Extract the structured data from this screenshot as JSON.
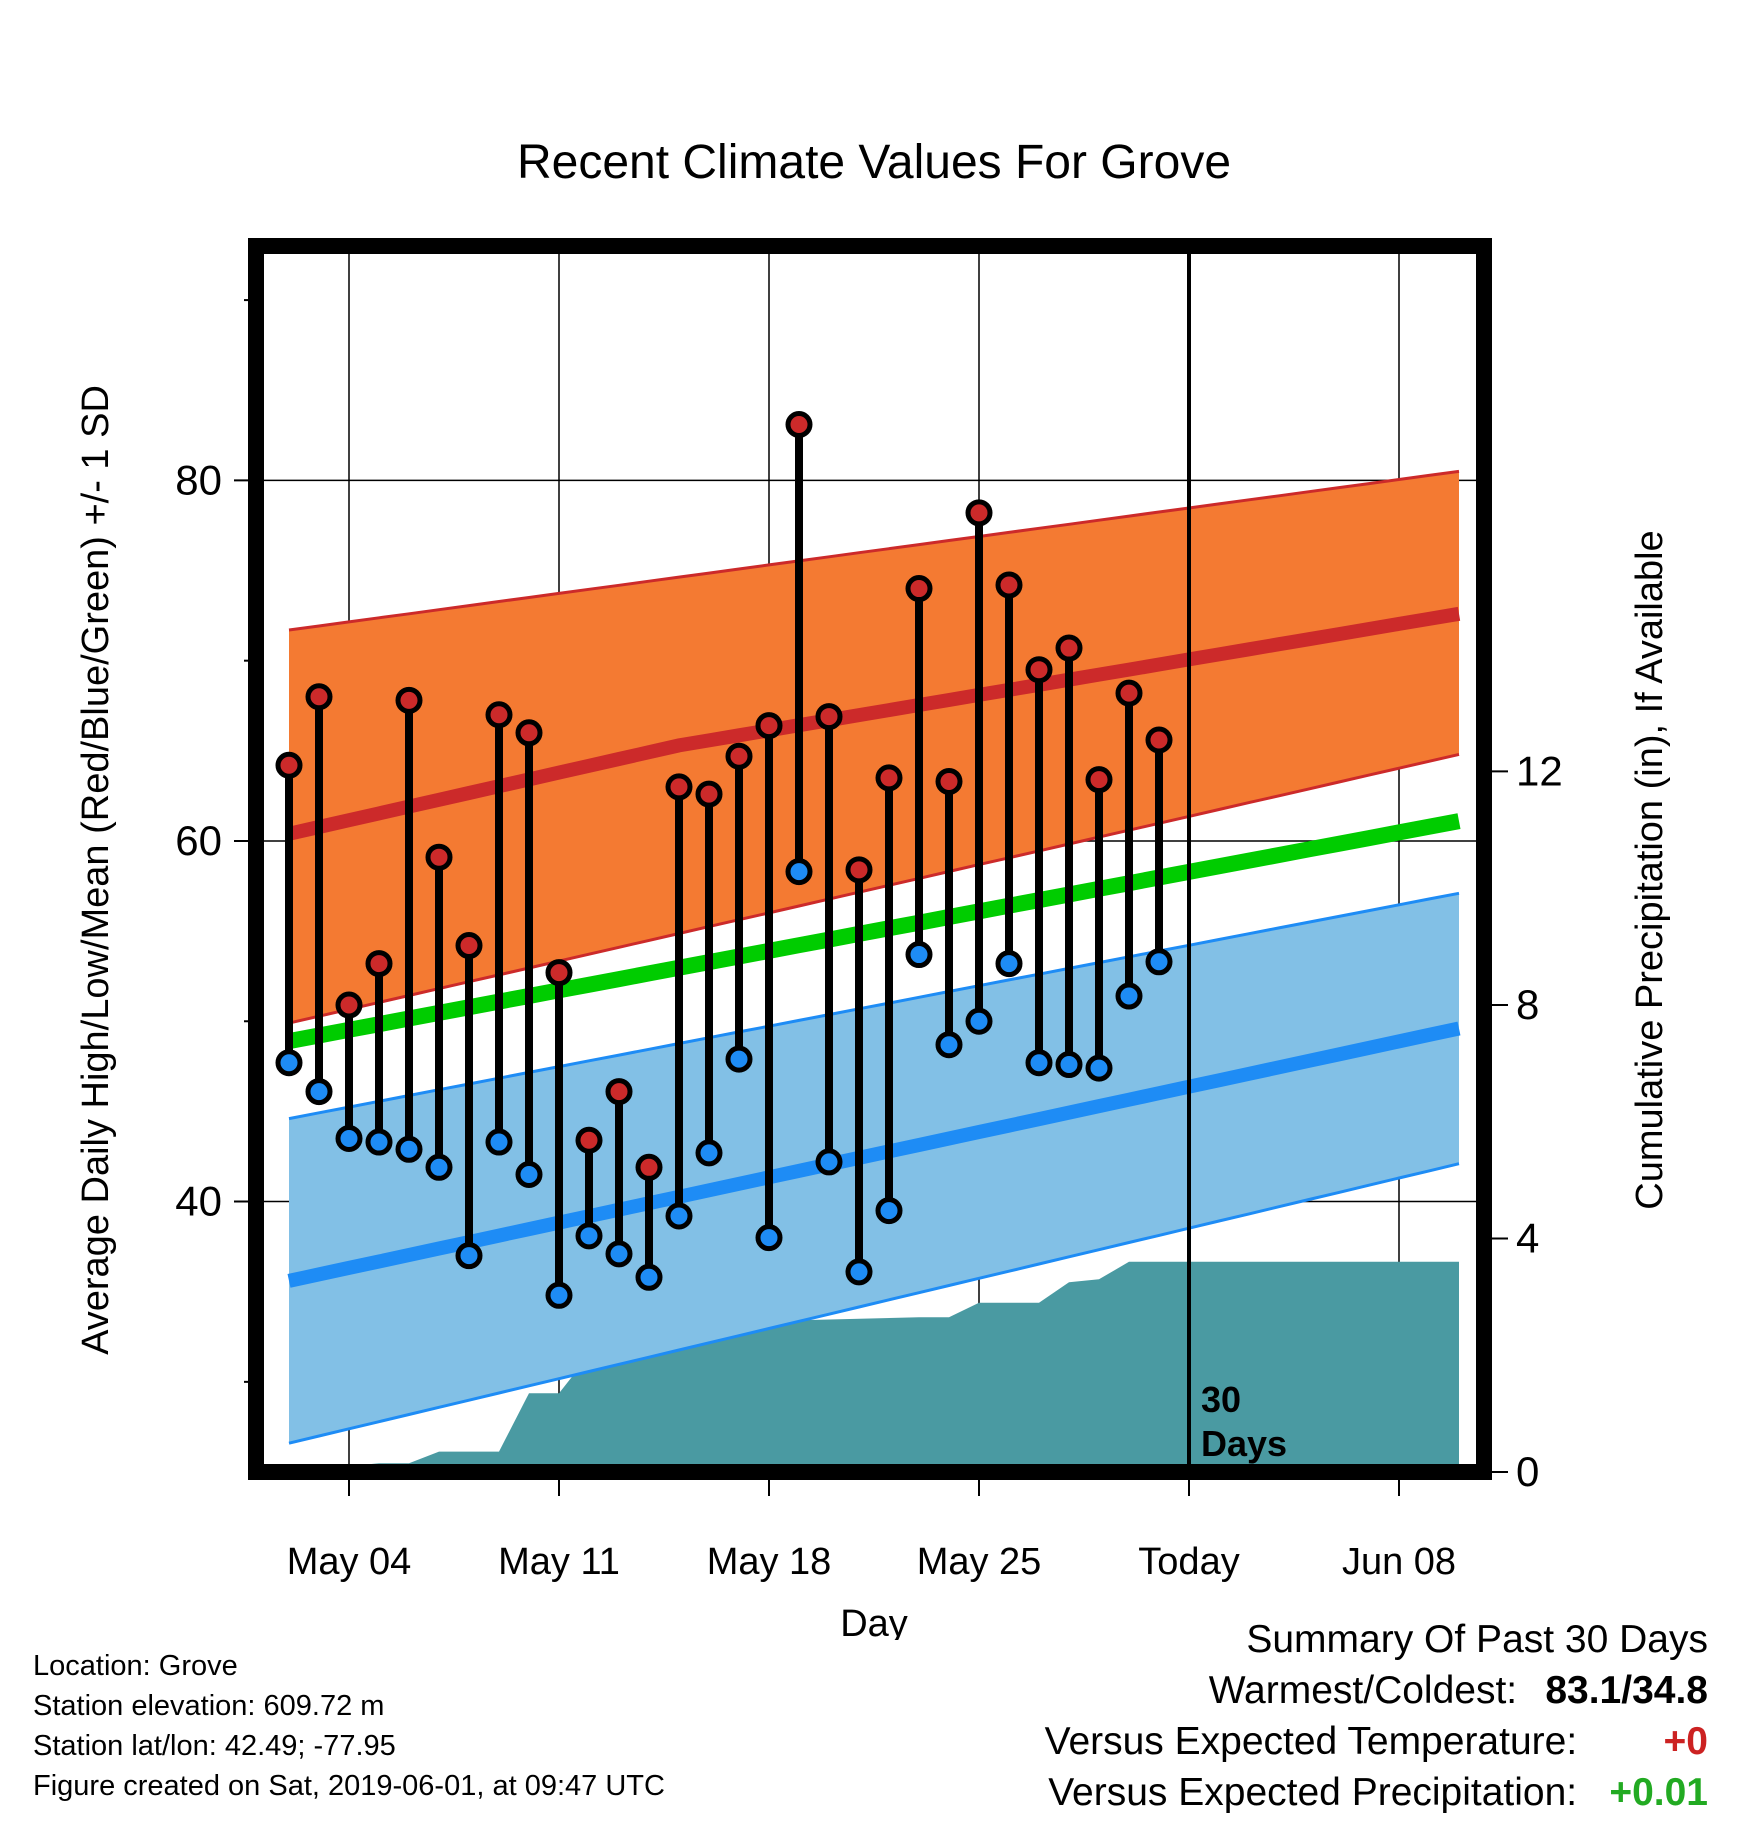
{
  "chart_data": {
    "type": "line",
    "title": "Recent Climate Values For Grove",
    "xlabel": "Day",
    "ylabel": "Average Daily High/Low/Mean (Red/Blue/Green) +/- 1 SD",
    "y2label": "Cumulative Precipitation (in), If Available",
    "x_ticks": [
      "May 04",
      "May 11",
      "May 18",
      "May 25",
      "Today",
      "Jun 08"
    ],
    "ylim": [
      25,
      93
    ],
    "y_ticks": [
      40,
      60,
      80
    ],
    "y2lim": [
      0,
      21
    ],
    "y2_ticks": [
      0,
      4,
      8,
      12
    ],
    "today_marker_label": "30\nDays",
    "colors": {
      "high_band": "#f47a32",
      "high_mean": "#cc2a2a",
      "low_band": "#82c0e6",
      "low_mean": "#1e8cf5",
      "mean_line": "#00cc00",
      "precip": "#4a9aa2",
      "high_marker": "#cc2a2a",
      "low_marker": "#1e8cf5"
    },
    "normal_high_mean": {
      "May 02": 60.4,
      "May 15": 65.3,
      "May 25": 68.1,
      "Jun 10": 72.6
    },
    "normal_high_sd_band": {
      "upper": {
        "May 02": 71.7,
        "Jun 10": 80.5
      },
      "lower": {
        "May 02": 49.9,
        "Jun 10": 64.8
      }
    },
    "normal_mean": {
      "May 02": 48.9,
      "Jun 10": 61.1
    },
    "normal_low_mean": {
      "May 02": 35.6,
      "Jun 10": 49.6
    },
    "normal_low_sd_band": {
      "upper": {
        "May 02": 44.6,
        "Jun 10": 57.1
      },
      "lower": {
        "May 02": 26.6,
        "Jun 10": 42.1
      }
    },
    "daily": [
      {
        "date": "May 02",
        "high": 64.2,
        "low": 47.7
      },
      {
        "date": "May 03",
        "high": 68.0,
        "low": 46.1
      },
      {
        "date": "May 04",
        "high": 50.9,
        "low": 43.5
      },
      {
        "date": "May 05",
        "high": 53.2,
        "low": 43.3
      },
      {
        "date": "May 06",
        "high": 67.8,
        "low": 42.9
      },
      {
        "date": "May 07",
        "high": 59.1,
        "low": 41.9
      },
      {
        "date": "May 08",
        "high": 54.2,
        "low": 37.0
      },
      {
        "date": "May 09",
        "high": 67.0,
        "low": 43.3
      },
      {
        "date": "May 10",
        "high": 66.0,
        "low": 41.5
      },
      {
        "date": "May 11",
        "high": 52.7,
        "low": 34.8
      },
      {
        "date": "May 12",
        "high": 43.4,
        "low": 38.1
      },
      {
        "date": "May 13",
        "high": 46.1,
        "low": 37.1
      },
      {
        "date": "May 14",
        "high": 41.9,
        "low": 35.8
      },
      {
        "date": "May 15",
        "high": 63.0,
        "low": 39.2
      },
      {
        "date": "May 16",
        "high": 62.6,
        "low": 42.7
      },
      {
        "date": "May 17",
        "high": 64.7,
        "low": 47.9
      },
      {
        "date": "May 18",
        "high": 66.4,
        "low": 38.0
      },
      {
        "date": "May 19",
        "high": 83.1,
        "low": 58.3
      },
      {
        "date": "May 20",
        "high": 66.9,
        "low": 42.2
      },
      {
        "date": "May 21",
        "high": 58.4,
        "low": 36.1
      },
      {
        "date": "May 22",
        "high": 63.5,
        "low": 39.5
      },
      {
        "date": "May 23",
        "high": 74.0,
        "low": 53.7
      },
      {
        "date": "May 24",
        "high": 63.3,
        "low": 48.7
      },
      {
        "date": "May 25",
        "high": 78.2,
        "low": 50.0
      },
      {
        "date": "May 26",
        "high": 74.2,
        "low": 53.2
      },
      {
        "date": "May 27",
        "high": 69.5,
        "low": 47.7
      },
      {
        "date": "May 28",
        "high": 70.7,
        "low": 47.6
      },
      {
        "date": "May 29",
        "high": 63.4,
        "low": 47.4
      },
      {
        "date": "May 30",
        "high": 68.2,
        "low": 51.4
      },
      {
        "date": "May 31",
        "high": 65.6,
        "low": 53.3
      }
    ],
    "cumulative_precip": [
      {
        "date": "May 01",
        "value": 0.0
      },
      {
        "date": "May 03",
        "value": 0.05
      },
      {
        "date": "May 05",
        "value": 0.15
      },
      {
        "date": "May 06",
        "value": 0.15
      },
      {
        "date": "May 07",
        "value": 0.35
      },
      {
        "date": "May 09",
        "value": 0.35
      },
      {
        "date": "May 09",
        "value": 0.35
      },
      {
        "date": "May 10",
        "value": 1.35
      },
      {
        "date": "May 11",
        "value": 1.35
      },
      {
        "date": "May 12",
        "value": 2.0
      },
      {
        "date": "May 13",
        "value": 2.4
      },
      {
        "date": "May 14",
        "value": 2.45
      },
      {
        "date": "May 15",
        "value": 2.5
      },
      {
        "date": "May 18",
        "value": 2.5
      },
      {
        "date": "May 19",
        "value": 2.6
      },
      {
        "date": "May 23",
        "value": 2.65
      },
      {
        "date": "May 24",
        "value": 2.65
      },
      {
        "date": "May 25",
        "value": 2.9
      },
      {
        "date": "May 27",
        "value": 2.9
      },
      {
        "date": "May 28",
        "value": 3.25
      },
      {
        "date": "May 29",
        "value": 3.3
      },
      {
        "date": "May 30",
        "value": 3.6
      },
      {
        "date": "Jun 10",
        "value": 3.6
      }
    ]
  },
  "info": {
    "location": "Location: Grove",
    "elevation": "Station elevation: 609.72 m",
    "latlon": "Station lat/lon: 42.49; -77.95",
    "created": "Figure created on Sat, 2019-06-01, at 09:47 UTC"
  },
  "summary": {
    "heading": "Summary Of Past 30 Days",
    "warm_cold_label": "Warmest/Coldest:",
    "warm_cold_value": "83.1/34.8",
    "temp_label": "Versus Expected Temperature:",
    "temp_value": "+0",
    "temp_color": "#cc2222",
    "precip_label": "Versus Expected Precipitation:",
    "precip_value": "+0.01",
    "precip_color": "#22aa22"
  }
}
